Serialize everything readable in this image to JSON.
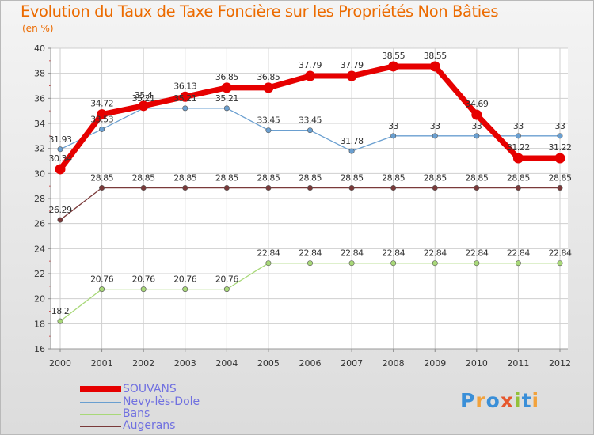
{
  "chart_data": {
    "type": "line",
    "title": "Evolution du Taux de Taxe Foncière sur les Propriétés Non Bâties",
    "ylabel": "(en %)",
    "xlabel": "",
    "ylim": [
      16,
      40
    ],
    "yticks": [
      "16",
      "18",
      "20",
      "22",
      "24",
      "26",
      "28",
      "30",
      "32",
      "34",
      "36",
      "38",
      "40"
    ],
    "categories": [
      "2000",
      "2001",
      "2002",
      "2003",
      "2004",
      "2005",
      "2006",
      "2007",
      "2008",
      "2009",
      "2010",
      "2011",
      "2012"
    ],
    "series": [
      {
        "name": "SOUVANS",
        "color": "#e60000",
        "values": [
          30.34,
          34.72,
          35.4,
          36.13,
          36.85,
          36.85,
          37.79,
          37.79,
          38.55,
          38.55,
          34.69,
          31.22,
          31.22
        ],
        "labels": [
          "30.34",
          "34.72",
          "35.4",
          "36.13",
          "36.85",
          "36.85",
          "37.79",
          "37.79",
          "38.55",
          "38.55",
          "34.69",
          "31.22",
          "31.22"
        ]
      },
      {
        "name": "Nevy-lès-Dole",
        "color": "#6a9fd0",
        "values": [
          31.93,
          33.53,
          35.21,
          35.21,
          35.21,
          33.45,
          33.45,
          31.78,
          33,
          33,
          33,
          33,
          33
        ],
        "labels": [
          "31.93",
          "33.53",
          "35.21",
          "35.21",
          "35.21",
          "33.45",
          "33.45",
          "31.78",
          "33",
          "33",
          "33",
          "33",
          "33"
        ]
      },
      {
        "name": "Bans",
        "color": "#a8d878",
        "values": [
          18.2,
          20.76,
          20.76,
          20.76,
          20.76,
          22.84,
          22.84,
          22.84,
          22.84,
          22.84,
          22.84,
          22.84,
          22.84
        ],
        "labels": [
          "18.2",
          "20.76",
          "20.76",
          "20.76",
          "20.76",
          "22.84",
          "22.84",
          "22.84",
          "22.84",
          "22.84",
          "22.84",
          "22.84",
          "22.84"
        ]
      },
      {
        "name": "Augerans",
        "color": "#7a3a3a",
        "values": [
          26.29,
          28.85,
          28.85,
          28.85,
          28.85,
          28.85,
          28.85,
          28.85,
          28.85,
          28.85,
          28.85,
          28.85,
          28.85
        ],
        "labels": [
          "26.29",
          "28.85",
          "28.85",
          "28.85",
          "28.85",
          "28.85",
          "28.85",
          "28.85",
          "28.85",
          "28.85",
          "28.85",
          "28.85",
          "28.85"
        ]
      }
    ],
    "legend": [
      "SOUVANS",
      "Nevy-lès-Dole",
      "Bans",
      "Augerans"
    ],
    "legend_position": "bottom-left"
  },
  "logo": {
    "letters": [
      "P",
      "r",
      "o",
      "x",
      "i",
      "t",
      "i"
    ]
  }
}
